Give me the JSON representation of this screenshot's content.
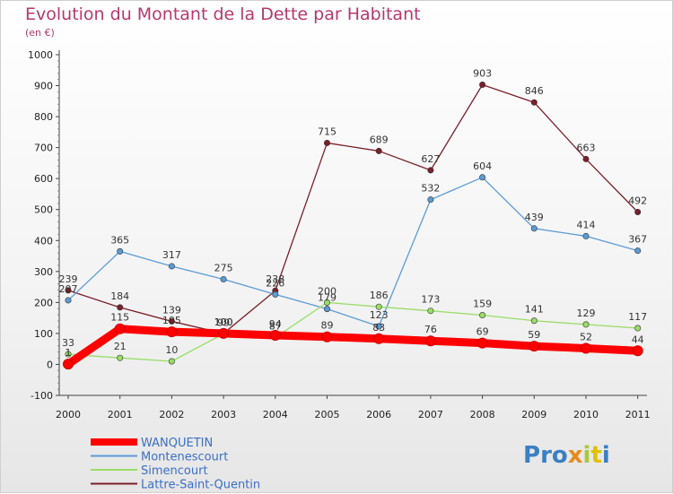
{
  "title": "Evolution du Montant de la Dette par Habitant",
  "subtitle": "(en €)",
  "logo_text": "Proxiti",
  "chart_data": {
    "type": "line",
    "title": "Evolution du Montant de la Dette par Habitant",
    "subtitle": "(en €)",
    "xlabel": "",
    "ylabel": "",
    "categories": [
      "2000",
      "2001",
      "2002",
      "2003",
      "2004",
      "2005",
      "2006",
      "2007",
      "2008",
      "2009",
      "2010",
      "2011"
    ],
    "ylim": [
      -100,
      1000
    ],
    "yticks": [
      "-100",
      "0",
      "100",
      "200",
      "300",
      "400",
      "500",
      "600",
      "700",
      "800",
      "900",
      "1000"
    ],
    "grid": false,
    "legend_position": "bottom-left",
    "series": [
      {
        "name": "WANQUETIN",
        "color": "#ff0000",
        "values": [
          1,
          115,
          105,
          100,
          94,
          89,
          83,
          76,
          69,
          59,
          52,
          44
        ],
        "labels": [
          "1",
          "115",
          "105",
          "100",
          "94",
          "89",
          "83",
          "76",
          "69",
          "59",
          "52",
          "44"
        ]
      },
      {
        "name": "Montenescourt",
        "color": "#5b9bd5",
        "values": [
          207,
          365,
          317,
          275,
          226,
          179,
          123,
          532,
          604,
          439,
          414,
          367
        ],
        "labels": [
          "207",
          "365",
          "317",
          "275",
          "226",
          "179",
          "123",
          "532",
          "604",
          "439",
          "414",
          "367"
        ]
      },
      {
        "name": "Simencourt",
        "color": "#99dd66",
        "values": [
          33,
          21,
          10,
          99,
          87,
          200,
          186,
          173,
          159,
          141,
          129,
          117
        ],
        "labels": [
          "33",
          "21",
          "10",
          "99",
          "87",
          "200",
          "186",
          "173",
          "159",
          "141",
          "129",
          "117"
        ]
      },
      {
        "name": "Lattre-Saint-Quentin",
        "color": "#7a1f2b",
        "values": [
          239,
          184,
          139,
          100,
          238,
          715,
          689,
          627,
          903,
          846,
          663,
          492
        ],
        "labels": [
          "239",
          "184",
          "139",
          "100",
          "238",
          "715",
          "689",
          "627",
          "903",
          "846",
          "663",
          "492"
        ]
      }
    ]
  }
}
